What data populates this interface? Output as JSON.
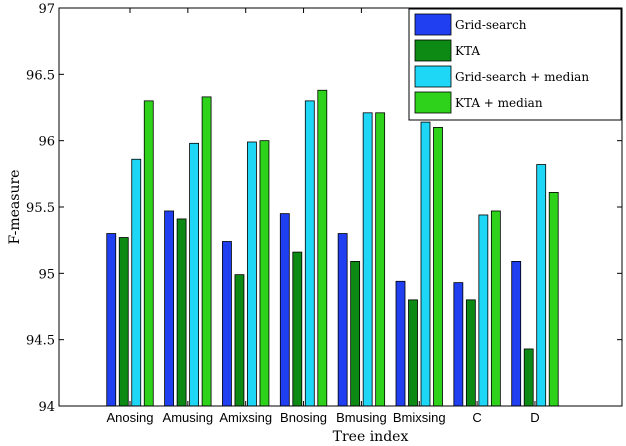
{
  "chart_data": {
    "type": "bar",
    "xlabel": "Tree index",
    "ylabel": "F-measure",
    "ylim": [
      94,
      97
    ],
    "yticks": [
      94,
      94.5,
      95,
      95.5,
      96,
      96.5,
      97
    ],
    "ytick_labels": [
      "94",
      "94.5",
      "95",
      "95.5",
      "96",
      "96.5",
      "97"
    ],
    "categories": [
      "Anosing",
      "Amusing",
      "Amixsing",
      "Bnosing",
      "Bmusing",
      "Bmixsing",
      "C",
      "D"
    ],
    "legend_position": "top-right",
    "grid": false,
    "series": [
      {
        "name": "Grid-search",
        "color": "#1f3ff0",
        "values": [
          95.3,
          95.47,
          95.24,
          95.45,
          95.3,
          94.94,
          94.93,
          95.09
        ]
      },
      {
        "name": "KTA",
        "color": "#0d8a14",
        "values": [
          95.27,
          95.41,
          94.99,
          95.16,
          95.09,
          94.8,
          94.8,
          94.43
        ]
      },
      {
        "name": "Grid-search + median",
        "color": "#1ed6f5",
        "values": [
          95.86,
          95.98,
          95.99,
          96.3,
          96.21,
          96.14,
          95.44,
          95.82
        ]
      },
      {
        "name": "KTA + median",
        "color": "#2ed21b",
        "values": [
          96.3,
          96.33,
          96.0,
          96.38,
          96.21,
          96.1,
          95.47,
          95.61
        ]
      }
    ]
  }
}
